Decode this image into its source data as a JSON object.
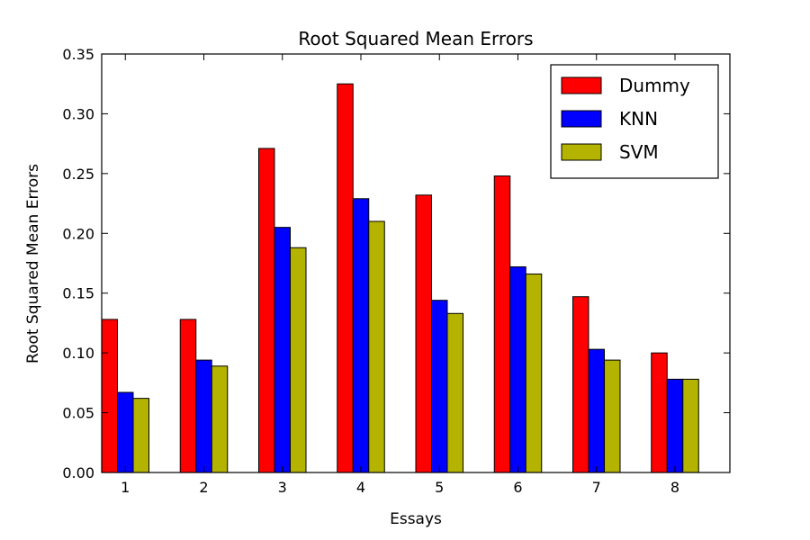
{
  "chart_data": {
    "type": "bar",
    "title": "Root Squared Mean Errors",
    "xlabel": "Essays",
    "ylabel": "Root Squared Mean Errors",
    "categories": [
      "1",
      "2",
      "3",
      "4",
      "5",
      "6",
      "7",
      "8"
    ],
    "ylim": [
      0,
      0.35
    ],
    "yticks": [
      "0.00",
      "0.05",
      "0.10",
      "0.15",
      "0.20",
      "0.25",
      "0.30",
      "0.35"
    ],
    "grid": false,
    "legend_position": "top-right",
    "series": [
      {
        "name": "Dummy",
        "color": "#ff0000",
        "values": [
          0.128,
          0.128,
          0.271,
          0.325,
          0.232,
          0.248,
          0.147,
          0.1
        ]
      },
      {
        "name": "KNN",
        "color": "#0000ff",
        "values": [
          0.067,
          0.094,
          0.205,
          0.229,
          0.144,
          0.172,
          0.103,
          0.078
        ]
      },
      {
        "name": "SVM",
        "color": "#b3b300",
        "values": [
          0.062,
          0.089,
          0.188,
          0.21,
          0.133,
          0.166,
          0.094,
          0.078
        ]
      }
    ]
  }
}
